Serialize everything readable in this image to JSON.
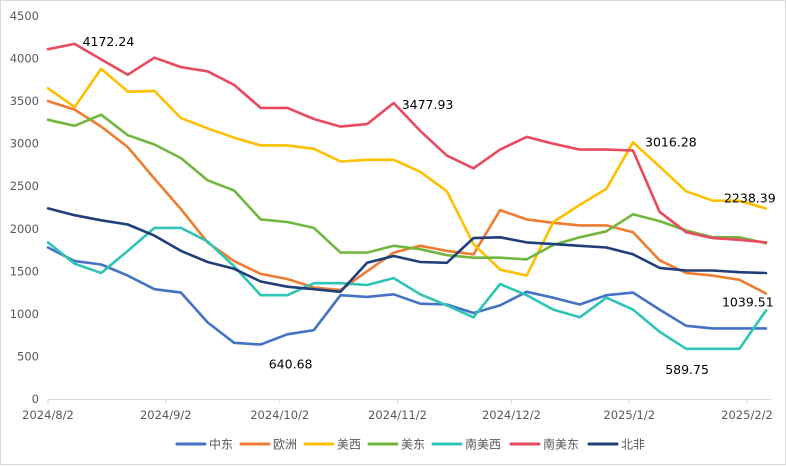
{
  "chart_data": {
    "type": "line",
    "title": "",
    "xlabel": "",
    "ylabel": "",
    "ylim": [
      0,
      4500
    ],
    "y_ticks": [
      0,
      500,
      1000,
      1500,
      2000,
      2500,
      3000,
      3500,
      4000,
      4500
    ],
    "x_start": "2024/8/2",
    "x_interval_days": 7,
    "x_tick_labels": [
      "2024/8/2",
      "2024/9/2",
      "2024/10/2",
      "2024/11/2",
      "2024/12/2",
      "2025/1/2",
      "2025/2/2"
    ],
    "x_tick_day_offsets": [
      0,
      31,
      61,
      92,
      122,
      153,
      184
    ],
    "x_end_day_offset": 190,
    "grid": false,
    "legend_position": "bottom",
    "series": [
      {
        "name": "中东",
        "color": "#4472C4",
        "values": [
          1780,
          1620,
          1580,
          1450,
          1290,
          1250,
          900,
          660,
          640.68,
          760,
          810,
          1220,
          1200,
          1230,
          1120,
          1110,
          1010,
          1100,
          1260,
          1190,
          1110,
          1220,
          1250,
          1050,
          860,
          830,
          830,
          830
        ]
      },
      {
        "name": "欧洲",
        "color": "#ED7D31",
        "values": [
          3500,
          3400,
          3200,
          2960,
          2590,
          2230,
          1840,
          1620,
          1470,
          1410,
          1310,
          1280,
          1500,
          1720,
          1800,
          1740,
          1700,
          2220,
          2110,
          2070,
          2040,
          2040,
          1960,
          1630,
          1480,
          1450,
          1400,
          1240
        ]
      },
      {
        "name": "美西",
        "color": "#FFC000",
        "values": [
          3650,
          3430,
          3880,
          3610,
          3620,
          3300,
          3180,
          3070,
          2980,
          2980,
          2940,
          2790,
          2810,
          2810,
          2670,
          2440,
          1820,
          1520,
          1450,
          2080,
          2280,
          2470,
          3016.28,
          2730,
          2440,
          2330,
          2330,
          2238.39
        ]
      },
      {
        "name": "美东",
        "color": "#70B73F",
        "values": [
          3280,
          3210,
          3340,
          3100,
          2990,
          2830,
          2570,
          2450,
          2110,
          2080,
          2010,
          1720,
          1720,
          1800,
          1760,
          1690,
          1660,
          1660,
          1640,
          1810,
          1900,
          1970,
          2170,
          2090,
          1980,
          1900,
          1900,
          1830
        ]
      },
      {
        "name": "南美西",
        "color": "#2EC4B6",
        "values": [
          1840,
          1590,
          1480,
          1740,
          2010,
          2010,
          1850,
          1560,
          1220,
          1220,
          1360,
          1360,
          1340,
          1420,
          1230,
          1100,
          960,
          1350,
          1220,
          1050,
          960,
          1190,
          1050,
          790,
          589.75,
          590,
          590,
          1039.51
        ]
      },
      {
        "name": "南美东",
        "color": "#E84A5F",
        "values": [
          4110,
          4172.24,
          3990,
          3810,
          4010,
          3900,
          3850,
          3690,
          3420,
          3420,
          3290,
          3200,
          3230,
          3477.93,
          3150,
          2860,
          2710,
          2930,
          3080,
          3000,
          2930,
          2930,
          2920,
          2200,
          1960,
          1890,
          1870,
          1840
        ]
      },
      {
        "name": "北非",
        "color": "#203F7A",
        "values": [
          2240,
          2160,
          2100,
          2050,
          1920,
          1740,
          1610,
          1530,
          1380,
          1320,
          1290,
          1260,
          1600,
          1680,
          1610,
          1600,
          1890,
          1900,
          1840,
          1820,
          1800,
          1780,
          1700,
          1540,
          1510,
          1510,
          1490,
          1480
        ]
      }
    ],
    "annotations": [
      {
        "text": "4172.24",
        "series": "南美东",
        "index": 1
      },
      {
        "text": "640.68",
        "series": "中东",
        "index": 8
      },
      {
        "text": "3477.93",
        "series": "南美东",
        "index": 13
      },
      {
        "text": "3016.28",
        "series": "美西",
        "index": 22
      },
      {
        "text": "2238.39",
        "series": "美西",
        "index": 27
      },
      {
        "text": "1039.51",
        "series": "南美西",
        "index": 27
      },
      {
        "text": "589.75",
        "series": "南美西",
        "index": 24
      }
    ]
  }
}
